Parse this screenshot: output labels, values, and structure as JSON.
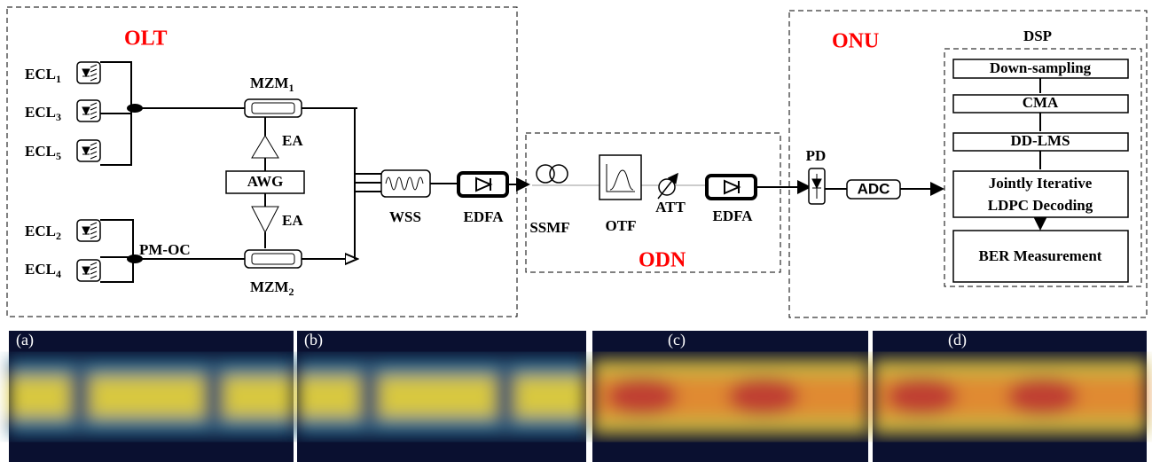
{
  "olt": {
    "title": "OLT",
    "lasers": [
      {
        "base": "ECL",
        "sub": "1"
      },
      {
        "base": "ECL",
        "sub": "3"
      },
      {
        "base": "ECL",
        "sub": "5"
      },
      {
        "base": "ECL",
        "sub": "2"
      },
      {
        "base": "ECL",
        "sub": "4"
      }
    ],
    "modulators": [
      {
        "base": "MZM",
        "sub": "1"
      },
      {
        "base": "MZM",
        "sub": "2"
      }
    ],
    "amplifiers": [
      "EA",
      "EA"
    ],
    "awg": "AWG",
    "coupler": "PM-OC",
    "wss": "WSS",
    "edfa": "EDFA"
  },
  "odn": {
    "title": "ODN",
    "ssmf": "SSMF",
    "otf": "OTF",
    "att": "ATT",
    "edfa": "EDFA"
  },
  "onu": {
    "title": "ONU",
    "pd": "PD",
    "adc": "ADC",
    "dsp": {
      "title": "DSP",
      "steps": [
        "Down-sampling",
        "CMA",
        "DD-LMS",
        [
          "Jointly Iterative",
          "LDPC Decoding"
        ],
        "BER Measurement"
      ]
    }
  },
  "eye_diagrams": [
    "(a)",
    "(b)",
    "(c)",
    "(d)"
  ]
}
